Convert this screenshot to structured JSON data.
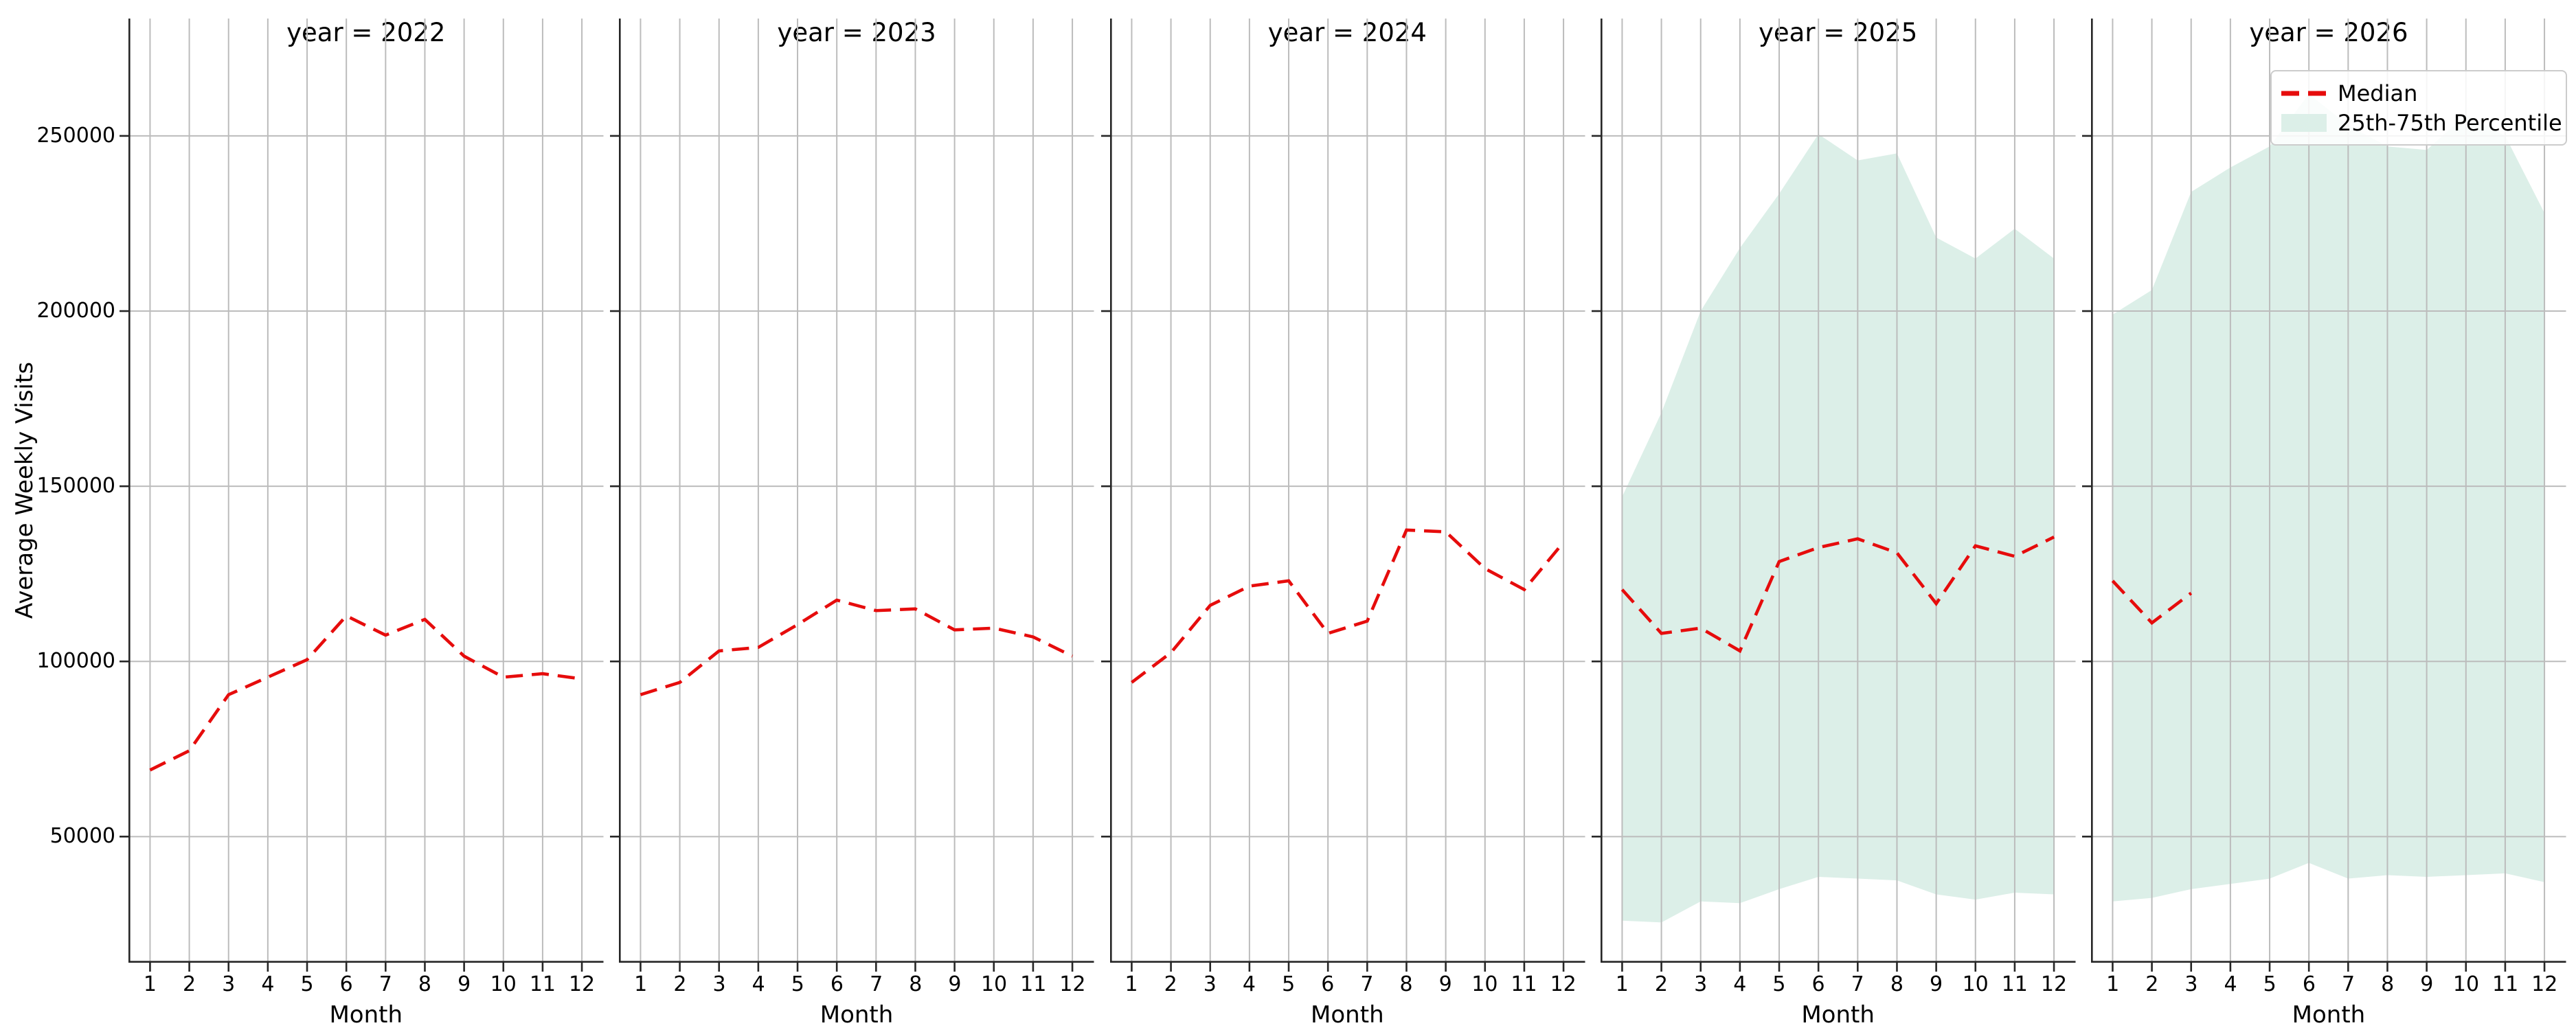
{
  "chart_data": {
    "type": "line",
    "facet_by": "year",
    "xlabel": "Month",
    "ylabel": "Average Weekly Visits",
    "categories": [
      1,
      2,
      3,
      4,
      5,
      6,
      7,
      8,
      9,
      10,
      11,
      12
    ],
    "yticks": [
      50000,
      100000,
      150000,
      200000,
      250000
    ],
    "ytick_labels": [
      "50000",
      "100000",
      "150000",
      "200000",
      "250000"
    ],
    "ylim": [
      14000,
      283500
    ],
    "grid": true,
    "legend_position": "upper right of 2026 panel",
    "legend": {
      "entries": [
        {
          "label": "Median",
          "type": "dashed-line",
          "color": "#e60c0c"
        },
        {
          "label": "25th-75th Percentile",
          "type": "patch",
          "color": "#dcefe8"
        }
      ]
    },
    "facets": [
      {
        "year": 2022,
        "title": "year = 2022",
        "median": [
          69000,
          74500,
          90500,
          95500,
          100500,
          113000,
          107500,
          112000,
          101500,
          95500,
          96500,
          95000
        ],
        "p25": null,
        "p75": null
      },
      {
        "year": 2023,
        "title": "year = 2023",
        "median": [
          90500,
          94000,
          103000,
          104000,
          110500,
          117500,
          114500,
          115000,
          109000,
          109500,
          107000,
          101500
        ],
        "p25": null,
        "p75": null
      },
      {
        "year": 2024,
        "title": "year = 2024",
        "median": [
          94000,
          102500,
          116000,
          121500,
          123000,
          108000,
          111500,
          137500,
          137000,
          126500,
          120500,
          134000
        ],
        "p25": null,
        "p75": null
      },
      {
        "year": 2025,
        "title": "year = 2025",
        "median": [
          120500,
          108000,
          109500,
          103000,
          128500,
          132500,
          135000,
          131000,
          116500,
          133000,
          130000,
          135500
        ],
        "p25": [
          26000,
          25500,
          31500,
          31000,
          35000,
          38500,
          38000,
          37500,
          33500,
          32000,
          34000,
          33500
        ],
        "p75": [
          147000,
          171000,
          200000,
          218000,
          233500,
          250500,
          243000,
          245000,
          221000,
          215000,
          223500,
          215000
        ]
      },
      {
        "year": 2026,
        "title": "year = 2026",
        "median": [
          123000,
          111000,
          119500
        ],
        "p25": [
          31500,
          32500,
          35000,
          36500,
          38000,
          42500,
          38000,
          39000,
          38500,
          39000,
          39500,
          37000
        ],
        "p75": [
          199000,
          206000,
          234000,
          241000,
          247000,
          262000,
          253000,
          247000,
          246000,
          256000,
          250000,
          228000
        ]
      }
    ],
    "colors": {
      "median_line": "#e60c0c",
      "band_fill": "#dcefe8",
      "grid": "#bcbcbc",
      "spine": "#262626",
      "legend_border": "#cccccc",
      "background": "#ffffff"
    }
  }
}
